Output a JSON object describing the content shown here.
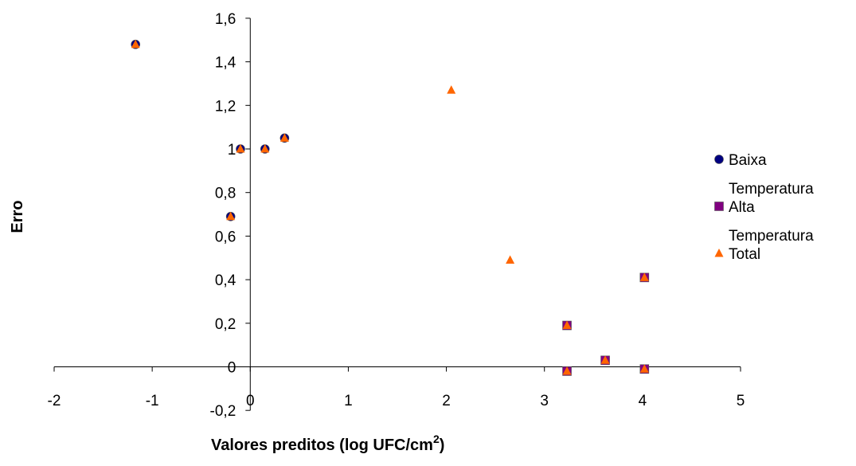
{
  "chart_data": {
    "type": "scatter",
    "xlabel": "Valores preditos (log UFC/cm",
    "xlabel_sup": "2",
    "xlabel_end": ")",
    "ylabel": "Erro",
    "xlim": [
      -2,
      5
    ],
    "ylim": [
      -0.2,
      1.6
    ],
    "x_ticks": [
      -2,
      -1,
      0,
      1,
      2,
      3,
      4,
      5
    ],
    "x_tick_labels": [
      "-2",
      "-1",
      "0",
      "1",
      "2",
      "3",
      "4",
      "5"
    ],
    "y_ticks": [
      -0.2,
      0,
      0.2,
      0.4,
      0.6,
      0.8,
      1,
      1.2,
      1.4,
      1.6
    ],
    "y_tick_labels": [
      "-0,2",
      "0",
      "0,2",
      "0,4",
      "0,6",
      "0,8",
      "1",
      "1,2",
      "1,4",
      "1,6"
    ],
    "grid": false,
    "legend_position": "right",
    "series": [
      {
        "name": "Baixa Temperatura",
        "legend_lines": [
          "Baixa",
          "Temperatura"
        ],
        "marker": "circle",
        "color": "#000080",
        "points": [
          [
            -1.17,
            1.48
          ],
          [
            -0.2,
            0.69
          ],
          [
            -0.1,
            1.0
          ],
          [
            0.15,
            1.0
          ],
          [
            0.35,
            1.05
          ]
        ]
      },
      {
        "name": "Alta Temperatura",
        "legend_lines": [
          "Alta",
          "Temperatura"
        ],
        "marker": "square",
        "color": "#800080",
        "points": [
          [
            3.23,
            0.19
          ],
          [
            3.23,
            -0.02
          ],
          [
            3.62,
            0.03
          ],
          [
            4.02,
            0.41
          ],
          [
            4.02,
            -0.01
          ]
        ]
      },
      {
        "name": "Total",
        "legend_lines": [
          "Total"
        ],
        "marker": "triangle",
        "color": "#FF6600",
        "points": [
          [
            -1.17,
            1.48
          ],
          [
            -0.2,
            0.69
          ],
          [
            -0.1,
            1.0
          ],
          [
            0.15,
            1.0
          ],
          [
            0.35,
            1.05
          ],
          [
            2.05,
            1.27
          ],
          [
            2.65,
            0.49
          ],
          [
            3.23,
            0.19
          ],
          [
            3.23,
            -0.02
          ],
          [
            3.62,
            0.03
          ],
          [
            4.02,
            0.41
          ],
          [
            4.02,
            -0.01
          ]
        ]
      }
    ]
  }
}
